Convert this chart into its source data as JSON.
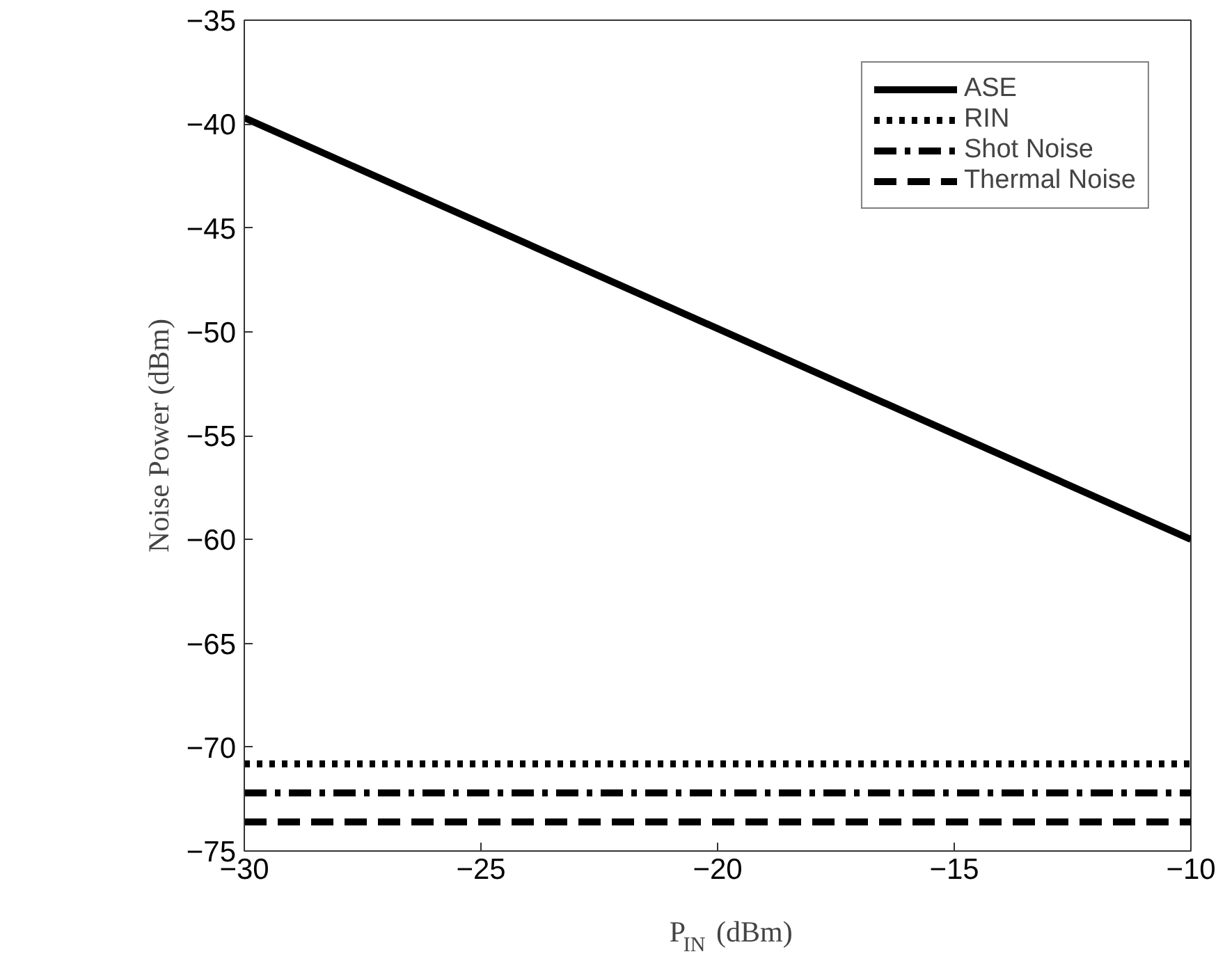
{
  "chart_data": {
    "type": "line",
    "xlabel": "P$_{IN}$ (dBm)",
    "ylabel": "Noise Power (dBm)",
    "x": [
      -30,
      -10
    ],
    "series": [
      {
        "name": "ASE",
        "color": "#000000",
        "values": [
          -39.7,
          -60
        ],
        "line_style": "solid"
      },
      {
        "name": "RIN",
        "color": "#000000",
        "values": [
          -70.8,
          -70.8
        ],
        "line_style": "dotted"
      },
      {
        "name": "Shot Noise",
        "color": "#000000",
        "values": [
          -72.2,
          -72.2
        ],
        "line_style": "dashdot"
      },
      {
        "name": "Thermal Noise",
        "color": "#000000",
        "values": [
          -73.6,
          -73.6
        ],
        "line_style": "dashed"
      }
    ],
    "xlim": [
      -30,
      -10
    ],
    "ylim": [
      -75,
      -35
    ],
    "xticks": [
      -30,
      -25,
      -20,
      -15,
      -10
    ],
    "yticks": [
      -75,
      -70,
      -65,
      -60,
      -55,
      -50,
      -45,
      -40,
      -35
    ],
    "grid": false,
    "legend": "top right",
    "marker": "none"
  }
}
